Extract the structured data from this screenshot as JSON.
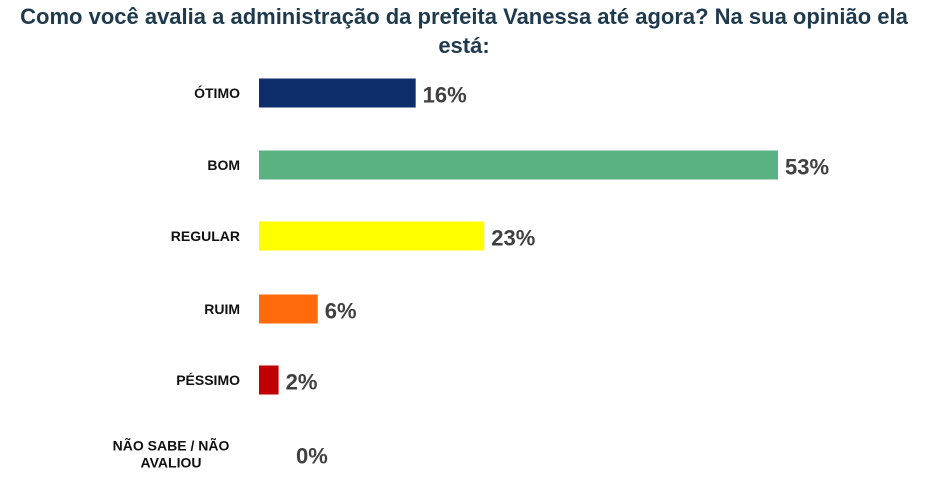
{
  "chart_data": {
    "type": "bar",
    "orientation": "horizontal",
    "title": "Como você avalia a administração da prefeita Vanessa até agora? Na sua opinião ela está:",
    "categories": [
      "ÓTIMO",
      "BOM",
      "REGULAR",
      "RUIM",
      "PÉSSIMO",
      "NÃO SABE / NÃO AVALIOU"
    ],
    "category_lines": [
      [
        "ÓTIMO"
      ],
      [
        "BOM"
      ],
      [
        "REGULAR"
      ],
      [
        "RUIM"
      ],
      [
        "PÉSSIMO"
      ],
      [
        "NÃO SABE / NÃO",
        "AVALIOU"
      ]
    ],
    "values": [
      16,
      53,
      23,
      6,
      2,
      0
    ],
    "value_labels": [
      "16%",
      "53%",
      "23%",
      "6%",
      "2%",
      "0%"
    ],
    "colors": [
      "#0e2d6b",
      "#5ab283",
      "#ffff00",
      "#ff6a0a",
      "#c00000",
      "#c00000"
    ],
    "xlim": [
      0,
      53
    ],
    "grid": false,
    "legend": "none"
  }
}
